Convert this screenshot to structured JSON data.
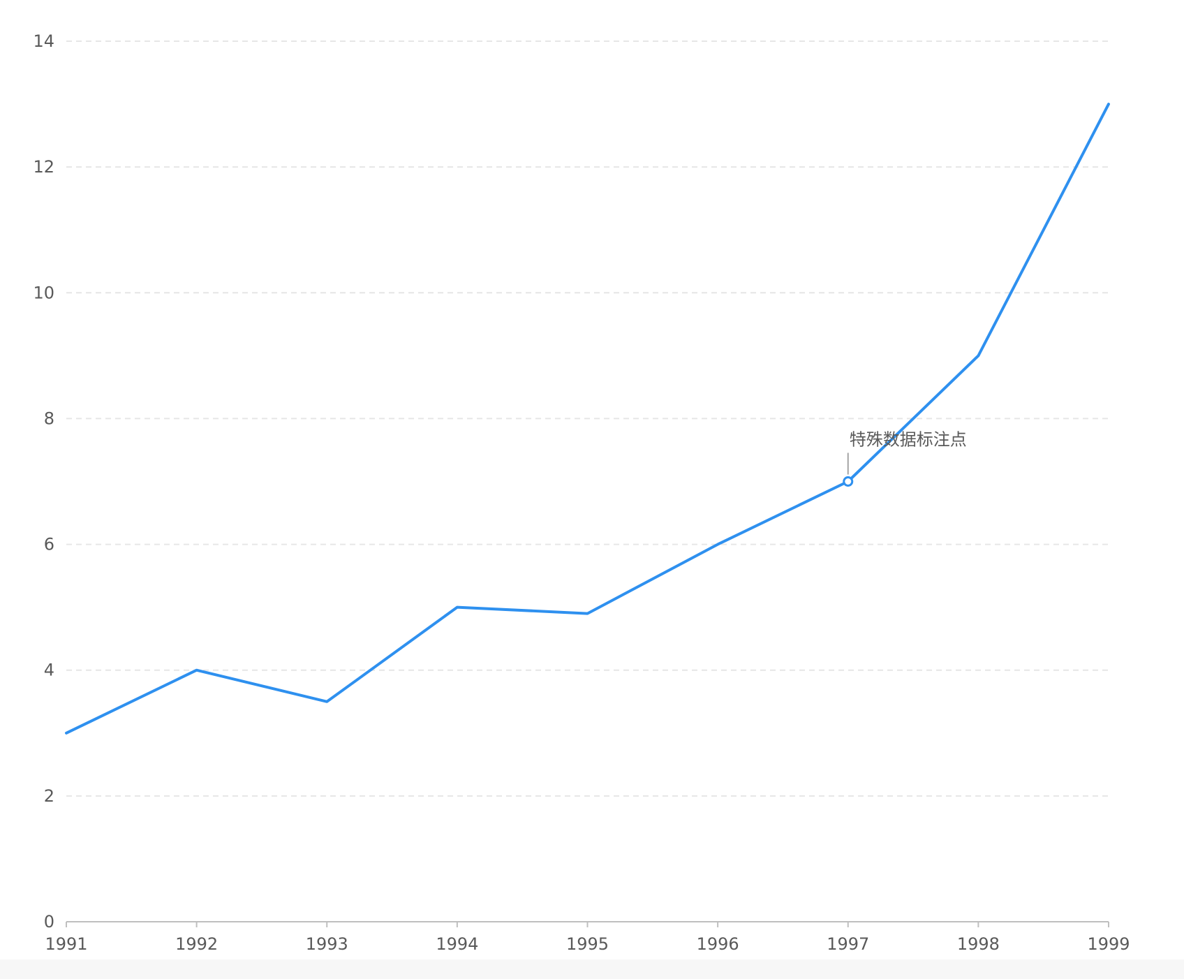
{
  "chart_data": {
    "type": "line",
    "x": [
      "1991",
      "1992",
      "1993",
      "1994",
      "1995",
      "1996",
      "1997",
      "1998",
      "1999"
    ],
    "series": [
      {
        "values": [
          3,
          4,
          3.5,
          5,
          4.9,
          6,
          7,
          9,
          13
        ],
        "color": "#2e90ef"
      }
    ],
    "ylim": [
      0,
      14
    ],
    "yticks": [
      0,
      2,
      4,
      6,
      8,
      10,
      12,
      14
    ],
    "grid": true,
    "annotations": [
      {
        "x": "1997",
        "y": 7,
        "text": "特殊数据标注点"
      }
    ]
  }
}
